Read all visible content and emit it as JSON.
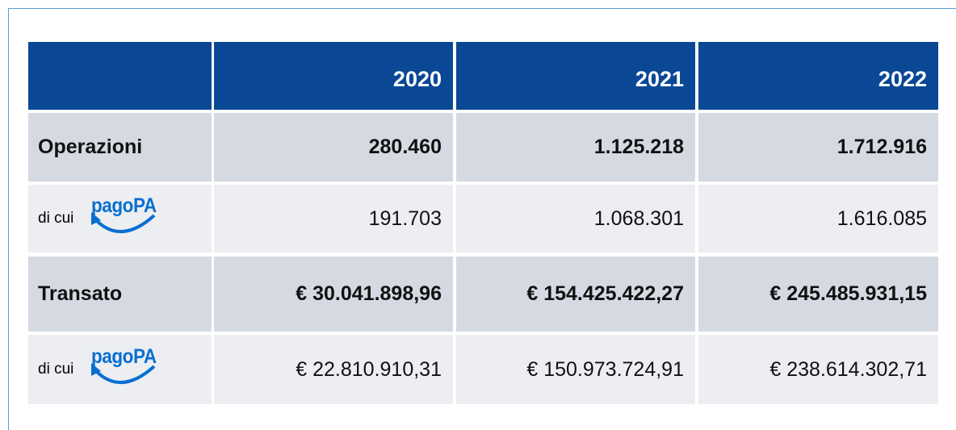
{
  "table": {
    "columns": [
      "2020",
      "2021",
      "2022"
    ],
    "rows": [
      {
        "label": "Operazioni",
        "values": [
          "280.460",
          "1.125.218",
          "1.712.916"
        ]
      },
      {
        "label": "di cui",
        "logo": "pagoPA",
        "values": [
          "191.703",
          "1.068.301",
          "1.616.085"
        ]
      },
      {
        "label": "Transato",
        "values": [
          "€ 30.041.898,96",
          "€ 154.425.422,27",
          "€ 245.485.931,15"
        ]
      },
      {
        "label": "di cui",
        "logo": "pagoPA",
        "values": [
          "€ 22.810.910,31",
          "€ 150.973.724,91",
          "€ 238.614.302,71"
        ]
      }
    ]
  }
}
